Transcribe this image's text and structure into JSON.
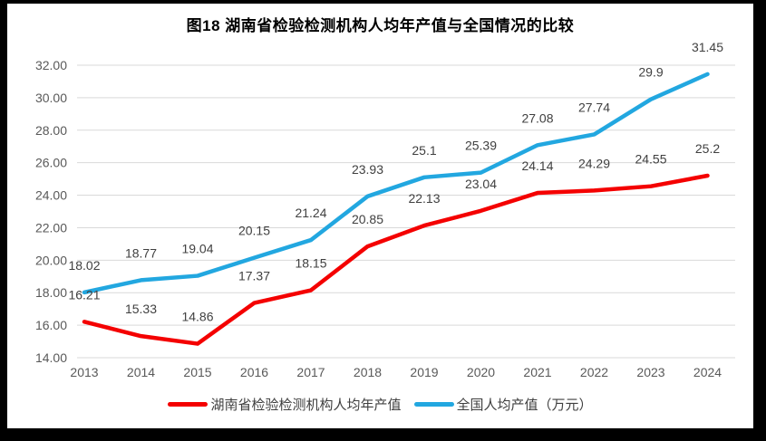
{
  "title": "图18 湖南省检验检测机构人均年产值与全国情况的比较",
  "chart_data": {
    "type": "line",
    "title": "图18 湖南省检验检测机构人均年产值与全国情况的比较",
    "categories": [
      "2013",
      "2014",
      "2015",
      "2016",
      "2017",
      "2018",
      "2019",
      "2020",
      "2021",
      "2022",
      "2023",
      "2024"
    ],
    "series": [
      {
        "name": "湖南省检验检测机构人均年产值",
        "color": "#f40000",
        "values": [
          16.21,
          15.33,
          14.86,
          17.37,
          18.15,
          20.85,
          22.13,
          23.04,
          24.14,
          24.29,
          24.55,
          25.2
        ]
      },
      {
        "name": "全国人均产值（万元）",
        "color": "#22a7e0",
        "values": [
          18.02,
          18.77,
          19.04,
          20.15,
          21.24,
          23.93,
          25.1,
          25.39,
          27.08,
          27.74,
          29.9,
          31.45
        ]
      }
    ],
    "xlabel": "",
    "ylabel": "",
    "ylim": [
      14,
      32
    ],
    "ytick_step": 2,
    "ytick_format_decimals": 2,
    "grid": true,
    "legend_position": "bottom",
    "colors": {
      "gridline": "#d9d9d9",
      "axis_text": "#595959",
      "data_label": "#404040",
      "background": "#ffffff",
      "frame": "#000000"
    }
  },
  "legend": {
    "items": [
      {
        "label": "湖南省检验检测机构人均年产值",
        "color": "#f40000"
      },
      {
        "label": "全国人均产值（万元）",
        "color": "#22a7e0"
      }
    ]
  }
}
